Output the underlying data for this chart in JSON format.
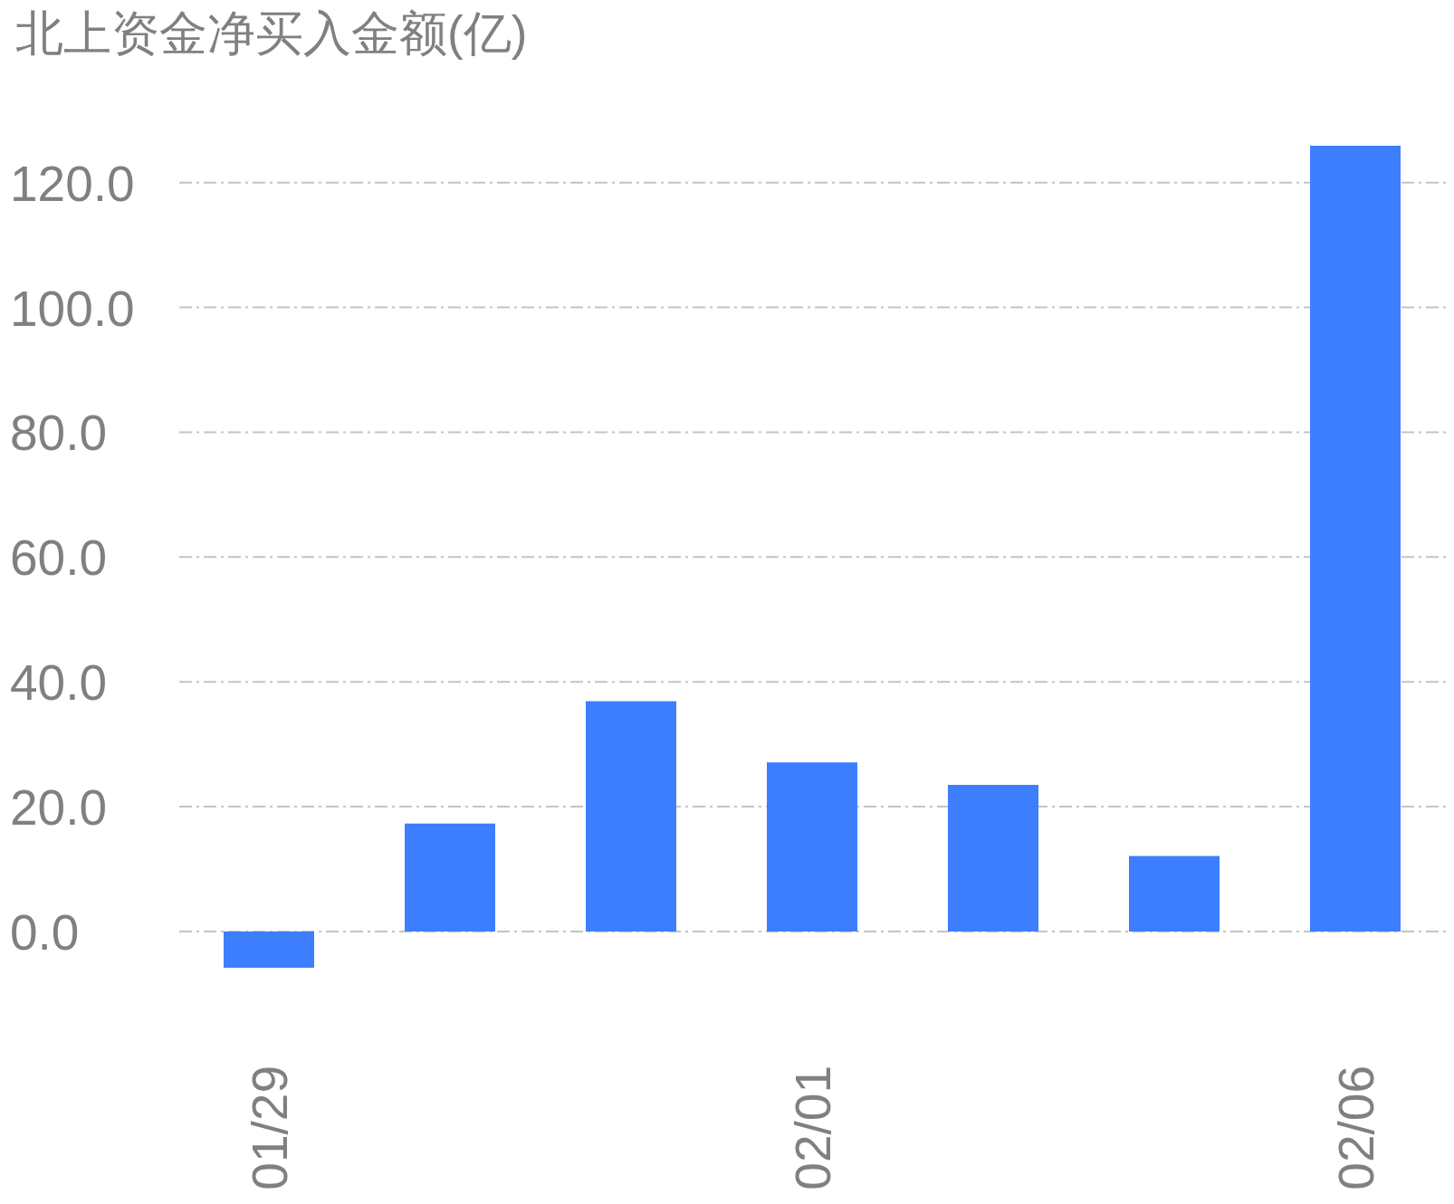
{
  "chart_data": {
    "type": "bar",
    "title": "北上资金净买入金额(亿)",
    "categories": [
      "01/29",
      null,
      null,
      "02/01",
      null,
      null,
      "02/06"
    ],
    "values": [
      -5.8,
      17.3,
      36.9,
      27.1,
      23.5,
      12.1,
      125.9
    ],
    "color": "#3d7eff",
    "ylim": [
      -5.8,
      125.9
    ],
    "yticks": [
      {
        "value": 0,
        "label": "0.0"
      },
      {
        "value": 20,
        "label": "20.0"
      },
      {
        "value": 40,
        "label": "40.0"
      },
      {
        "value": 60,
        "label": "60.0"
      },
      {
        "value": 80,
        "label": "80.0"
      },
      {
        "value": 100,
        "label": "100.0"
      },
      {
        "value": 120,
        "label": "120.0"
      }
    ],
    "grid": "y"
  }
}
